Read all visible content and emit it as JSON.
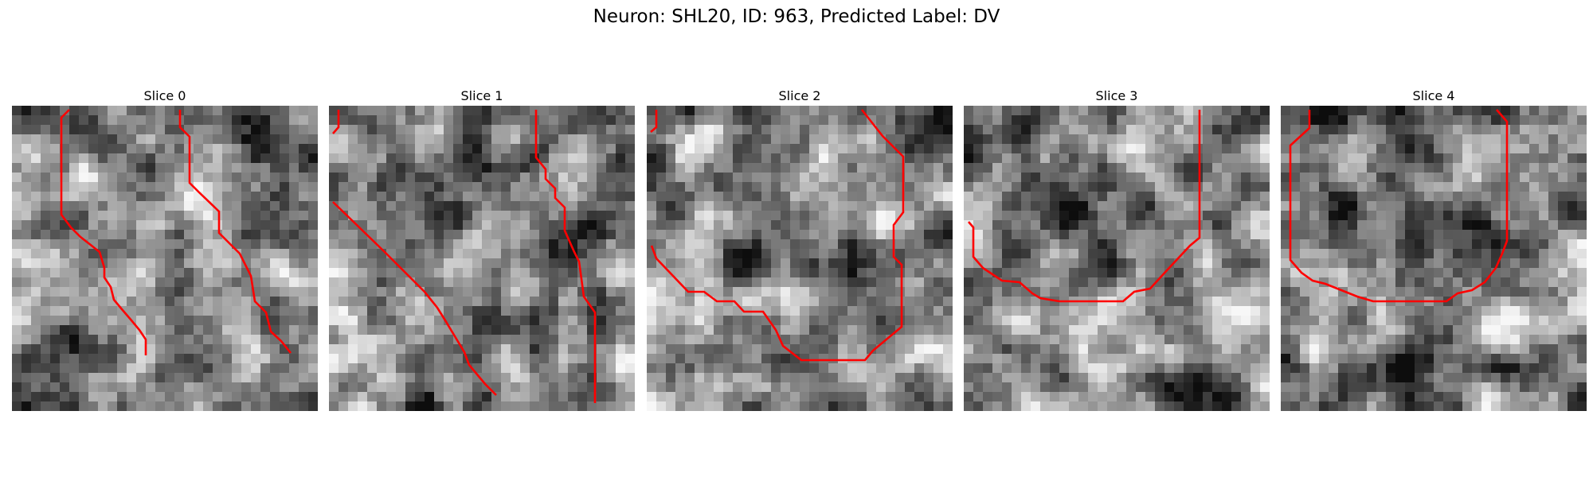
{
  "figure": {
    "title": "Neuron: SHL20, ID: 963, Predicted Label: DV"
  },
  "panels": [
    {
      "title": "Slice 0",
      "seed": 11
    },
    {
      "title": "Slice 1",
      "seed": 23
    },
    {
      "title": "Slice 2",
      "seed": 37
    },
    {
      "title": "Slice 3",
      "seed": 51
    },
    {
      "title": "Slice 4",
      "seed": 67
    }
  ],
  "colors": {
    "contour": "#ff0000"
  }
}
